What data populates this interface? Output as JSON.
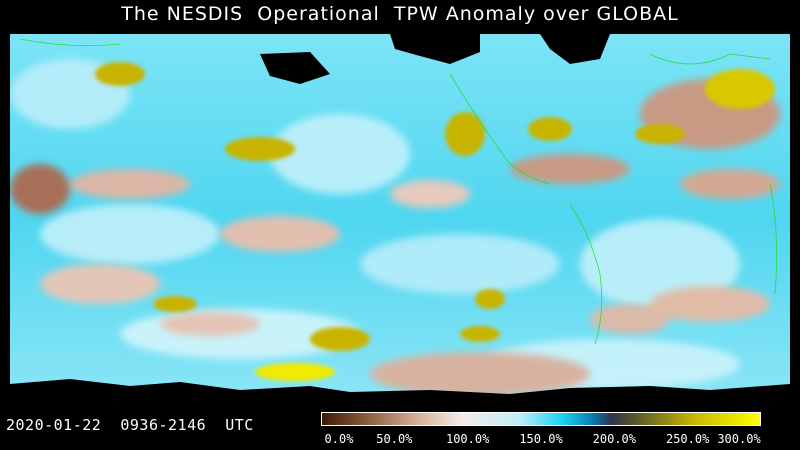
{
  "title": "The NESDIS  Operational  TPW Anomaly over GLOBAL",
  "timestamp": "2020-01-22  0936-2146  UTC",
  "colorbar": {
    "ticks": [
      "0.0%",
      "50.0%",
      "100.0%",
      "150.0%",
      "200.0%",
      "250.0%",
      "300.0%"
    ],
    "stops": [
      {
        "offset": 0.0,
        "color": "#3a1a06"
      },
      {
        "offset": 0.1,
        "color": "#8a5a3a"
      },
      {
        "offset": 0.22,
        "color": "#d9b09a"
      },
      {
        "offset": 0.32,
        "color": "#f4ece8"
      },
      {
        "offset": 0.45,
        "color": "#bdeefa"
      },
      {
        "offset": 0.55,
        "color": "#1ad0f0"
      },
      {
        "offset": 0.62,
        "color": "#0a7ab0"
      },
      {
        "offset": 0.66,
        "color": "#30344a"
      },
      {
        "offset": 0.72,
        "color": "#5a5a2a"
      },
      {
        "offset": 0.85,
        "color": "#c8b800"
      },
      {
        "offset": 1.0,
        "color": "#ffff00"
      }
    ]
  },
  "colors": {
    "ocean_base": "#5fdcf2",
    "moist_light": "#b8eefa",
    "dry_brown": "#c09078",
    "dry_pink": "#e8c8bc",
    "high_yellow": "#c8b400",
    "coast_green": "#22dd22",
    "no_data": "#000000"
  }
}
